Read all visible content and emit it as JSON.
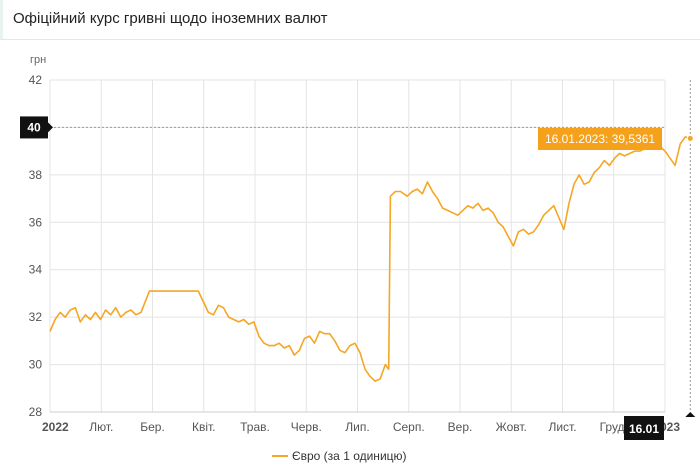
{
  "header": {
    "title": "Офіційний курс гривні щодо іноземних валют"
  },
  "chart_data": {
    "type": "line",
    "title": "",
    "ylabel": "грн",
    "xlabel": "",
    "ylim": [
      28,
      42
    ],
    "yticks": [
      28,
      30,
      32,
      34,
      36,
      38,
      40,
      42
    ],
    "x_tick_labels": [
      "2022",
      "Лют.",
      "Бер.",
      "Квіт.",
      "Трав.",
      "Черв.",
      "Лип.",
      "Серп.",
      "Вер.",
      "Жовт.",
      "Лист.",
      "Груд.",
      "2023"
    ],
    "crosshair": {
      "y_value": "40",
      "x_value": "16.01",
      "tooltip": "16.01.2023: 39,5361"
    },
    "legend": {
      "position": "bottom-center"
    },
    "grid": true,
    "colors": {
      "line": "#f5a623",
      "badge_dark": "#111111",
      "tooltip_bg": "#f5a11c"
    },
    "series": [
      {
        "name": "Євро (за 1 одиницю)",
        "x": [
          "2022-01-01",
          "2022-01-04",
          "2022-01-07",
          "2022-01-10",
          "2022-01-13",
          "2022-01-16",
          "2022-01-19",
          "2022-01-22",
          "2022-01-25",
          "2022-01-28",
          "2022-01-31",
          "2022-02-03",
          "2022-02-06",
          "2022-02-09",
          "2022-02-12",
          "2022-02-15",
          "2022-02-18",
          "2022-02-21",
          "2022-02-24",
          "2022-03-01",
          "2022-03-10",
          "2022-03-20",
          "2022-03-30",
          "2022-04-05",
          "2022-04-08",
          "2022-04-11",
          "2022-04-14",
          "2022-04-17",
          "2022-04-20",
          "2022-04-23",
          "2022-04-26",
          "2022-04-29",
          "2022-05-02",
          "2022-05-05",
          "2022-05-08",
          "2022-05-11",
          "2022-05-14",
          "2022-05-17",
          "2022-05-20",
          "2022-05-23",
          "2022-05-26",
          "2022-05-29",
          "2022-06-01",
          "2022-06-04",
          "2022-06-07",
          "2022-06-10",
          "2022-06-13",
          "2022-06-16",
          "2022-06-19",
          "2022-06-22",
          "2022-06-25",
          "2022-06-28",
          "2022-07-01",
          "2022-07-04",
          "2022-07-07",
          "2022-07-10",
          "2022-07-13",
          "2022-07-16",
          "2022-07-19",
          "2022-07-21",
          "2022-07-22",
          "2022-07-25",
          "2022-07-28",
          "2022-08-01",
          "2022-08-04",
          "2022-08-07",
          "2022-08-10",
          "2022-08-13",
          "2022-08-16",
          "2022-08-19",
          "2022-08-22",
          "2022-08-25",
          "2022-08-28",
          "2022-08-31",
          "2022-09-03",
          "2022-09-06",
          "2022-09-09",
          "2022-09-12",
          "2022-09-15",
          "2022-09-18",
          "2022-09-21",
          "2022-09-24",
          "2022-09-27",
          "2022-09-30",
          "2022-10-03",
          "2022-10-06",
          "2022-10-09",
          "2022-10-12",
          "2022-10-15",
          "2022-10-18",
          "2022-10-21",
          "2022-10-24",
          "2022-10-27",
          "2022-10-30",
          "2022-11-02",
          "2022-11-05",
          "2022-11-08",
          "2022-11-11",
          "2022-11-14",
          "2022-11-17",
          "2022-11-20",
          "2022-11-23",
          "2022-11-26",
          "2022-11-29",
          "2022-12-02",
          "2022-12-05",
          "2022-12-08",
          "2022-12-11",
          "2022-12-14",
          "2022-12-17",
          "2022-12-20",
          "2022-12-23",
          "2022-12-26",
          "2022-12-29",
          "2023-01-01",
          "2023-01-04",
          "2023-01-07",
          "2023-01-10",
          "2023-01-13",
          "2023-01-16"
        ],
        "values": [
          31.4,
          31.9,
          32.2,
          32.0,
          32.3,
          32.4,
          31.8,
          32.1,
          31.9,
          32.2,
          31.9,
          32.3,
          32.1,
          32.4,
          32.0,
          32.2,
          32.3,
          32.1,
          32.2,
          33.1,
          33.1,
          33.1,
          33.1,
          32.2,
          32.1,
          32.5,
          32.4,
          32.0,
          31.9,
          31.8,
          31.9,
          31.7,
          31.8,
          31.2,
          30.9,
          30.8,
          30.8,
          30.9,
          30.7,
          30.8,
          30.4,
          30.6,
          31.1,
          31.2,
          30.9,
          31.4,
          31.3,
          31.3,
          31.0,
          30.6,
          30.5,
          30.8,
          30.9,
          30.5,
          29.8,
          29.5,
          29.3,
          29.4,
          30.0,
          29.8,
          37.1,
          37.3,
          37.3,
          37.1,
          37.3,
          37.4,
          37.2,
          37.7,
          37.3,
          37.0,
          36.6,
          36.5,
          36.4,
          36.3,
          36.5,
          36.7,
          36.6,
          36.8,
          36.5,
          36.6,
          36.4,
          36.0,
          35.8,
          35.4,
          35.0,
          35.6,
          35.7,
          35.5,
          35.6,
          35.9,
          36.3,
          36.5,
          36.7,
          36.2,
          35.7,
          36.8,
          37.6,
          38.0,
          37.6,
          37.7,
          38.1,
          38.3,
          38.6,
          38.4,
          38.7,
          38.9,
          38.8,
          38.9,
          39.0,
          39.0,
          39.1,
          39.2,
          39.1,
          39.2,
          39.0,
          38.7,
          38.4,
          39.3,
          39.6,
          39.5361
        ]
      }
    ]
  }
}
